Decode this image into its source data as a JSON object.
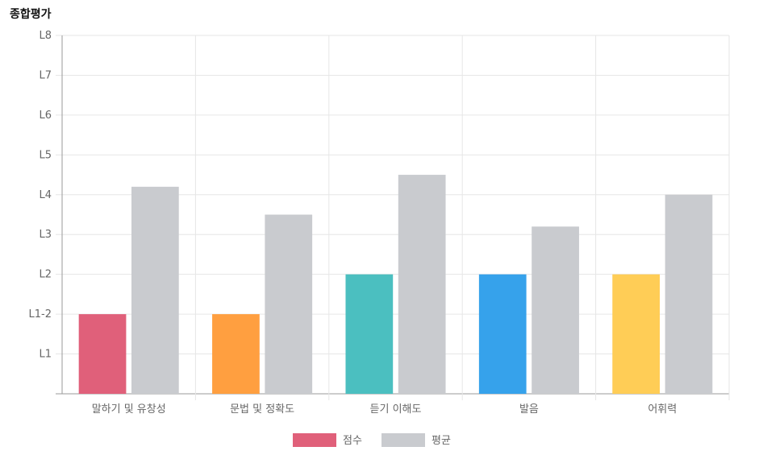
{
  "chart_title": "종합평가",
  "chart_data": {
    "type": "bar",
    "title": "종합평가",
    "y_levels": [
      "",
      "L1",
      "L1-2",
      "L2",
      "L3",
      "L4",
      "L5",
      "L6",
      "L7",
      "L8"
    ],
    "categories": [
      "말하기 및 유창성",
      "문법 및 정확도",
      "듣기 이해도",
      "발음",
      "어휘력"
    ],
    "series": [
      {
        "name": "점수",
        "values": [
          2,
          2,
          3,
          3,
          3
        ],
        "colors": [
          "#e0607a",
          "#ff9f40",
          "#4bbfc0",
          "#36a2eb",
          "#ffcd56"
        ]
      },
      {
        "name": "평균",
        "values": [
          5.2,
          4.5,
          5.5,
          4.2,
          5.0
        ],
        "colors": [
          "#c9cbcf",
          "#c9cbcf",
          "#c9cbcf",
          "#c9cbcf",
          "#c9cbcf"
        ]
      }
    ],
    "ylim": [
      0,
      9
    ],
    "legend_position": "bottom",
    "legend_colors": [
      "#e0607a",
      "#c9cbcf"
    ],
    "grid": true
  }
}
